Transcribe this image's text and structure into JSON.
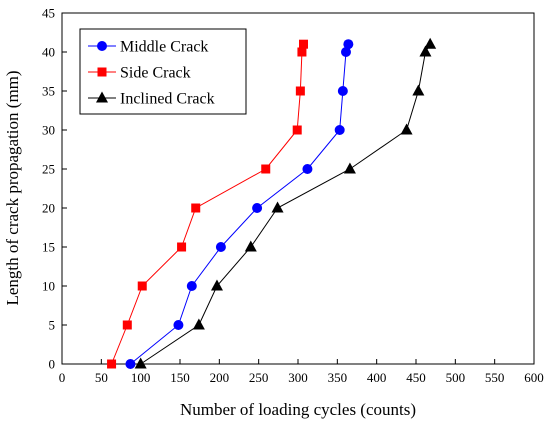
{
  "chart_data": {
    "type": "line",
    "title": "",
    "xlabel": "Number of loading cycles (counts)",
    "ylabel": "Length of crack propagation (mm)",
    "xlim": [
      0,
      600
    ],
    "ylim": [
      0,
      45
    ],
    "xticks": [
      0,
      50,
      100,
      150,
      200,
      250,
      300,
      350,
      400,
      450,
      500,
      550,
      600
    ],
    "yticks": [
      0,
      5,
      10,
      15,
      20,
      25,
      30,
      35,
      40,
      45
    ],
    "grid": false,
    "legend_position": "top-left",
    "series": [
      {
        "name": "Middle Crack",
        "color": "#0000ff",
        "marker": "circle",
        "x": [
          87,
          148,
          165,
          202,
          248,
          312,
          353,
          357,
          361,
          364
        ],
        "y": [
          0,
          5,
          10,
          15,
          20,
          25,
          30,
          35,
          40,
          41
        ]
      },
      {
        "name": "Side Crack",
        "color": "#ff0000",
        "marker": "square",
        "x": [
          63,
          83,
          102,
          152,
          170,
          259,
          299,
          303,
          305,
          307
        ],
        "y": [
          0,
          5,
          10,
          15,
          20,
          25,
          30,
          35,
          40,
          41
        ]
      },
      {
        "name": "Inclined Crack",
        "color": "#000000",
        "marker": "triangle",
        "x": [
          100,
          174,
          197,
          240,
          274,
          366,
          438,
          453,
          462,
          468
        ],
        "y": [
          0,
          5,
          10,
          15,
          20,
          25,
          30,
          35,
          40,
          41
        ]
      }
    ]
  }
}
